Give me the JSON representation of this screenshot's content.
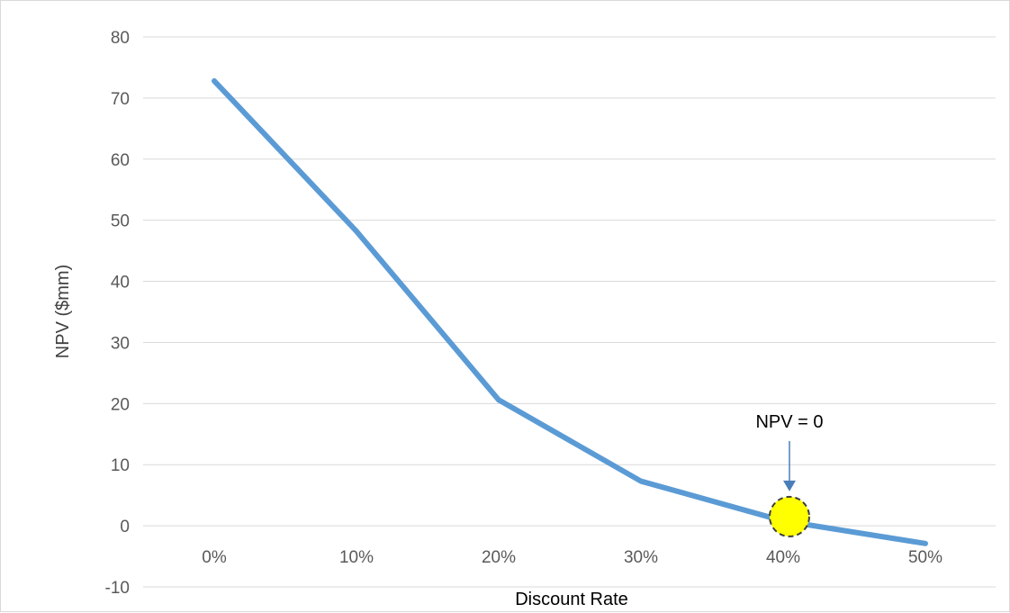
{
  "chart_data": {
    "type": "line",
    "title": "",
    "xlabel": "Discount Rate",
    "ylabel": "NPV ($mm)",
    "categories": [
      "0%",
      "10%",
      "20%",
      "30%",
      "40%",
      "50%"
    ],
    "series": [
      {
        "values": [
          72.8,
          48.2,
          20.6,
          7.3,
          0.8,
          -2.9
        ],
        "color": "#5b9bd5"
      }
    ],
    "y_ticks": [
      "-10",
      "0",
      "10",
      "20",
      "30",
      "40",
      "50",
      "60",
      "70",
      "80"
    ],
    "ylim": [
      -10,
      80
    ],
    "grid": true,
    "legend": "none",
    "annotation": {
      "label": "NPV = 0",
      "x": "40%",
      "y": 1.5,
      "marker_color": "#ffff00"
    }
  }
}
